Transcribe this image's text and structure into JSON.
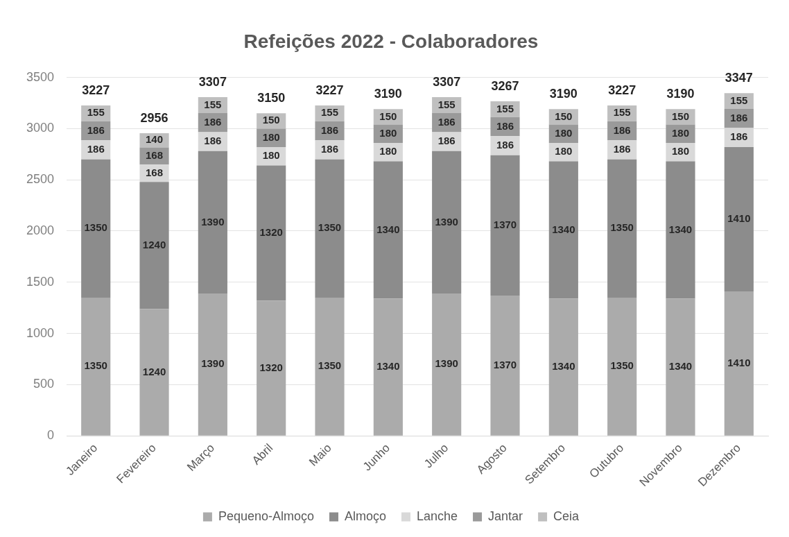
{
  "chart_data": {
    "type": "bar",
    "title": "Refeições 2022 - Colaboradores",
    "categories": [
      "Janeiro",
      "Fevereiro",
      "Março",
      "Abril",
      "Maio",
      "Junho",
      "Julho",
      "Agosto",
      "Setembro",
      "Outubro",
      "Novembro",
      "Dezembro"
    ],
    "series": [
      {
        "name": "Pequeno-Almoço",
        "color": "#ababab",
        "values": [
          1350,
          1240,
          1390,
          1320,
          1350,
          1340,
          1390,
          1370,
          1340,
          1350,
          1340,
          1410
        ]
      },
      {
        "name": "Almoço",
        "color": "#8c8c8c",
        "values": [
          1350,
          1240,
          1390,
          1320,
          1350,
          1340,
          1390,
          1370,
          1340,
          1350,
          1340,
          1410
        ]
      },
      {
        "name": "Lanche",
        "color": "#d9d9d9",
        "values": [
          186,
          168,
          186,
          180,
          186,
          180,
          186,
          186,
          180,
          186,
          180,
          186
        ]
      },
      {
        "name": "Jantar",
        "color": "#9a9a9a",
        "values": [
          186,
          168,
          186,
          180,
          186,
          180,
          186,
          186,
          180,
          186,
          180,
          186
        ]
      },
      {
        "name": "Ceia",
        "color": "#bfbfbf",
        "values": [
          155,
          140,
          155,
          150,
          155,
          150,
          155,
          155,
          150,
          155,
          150,
          155
        ]
      }
    ],
    "stacked": true,
    "totals": [
      "3227",
      "2956",
      "3307",
      "3150",
      "3227",
      "3190",
      "3307",
      "3267",
      "3190",
      "3227",
      "3190",
      "3347"
    ],
    "data_labels": true,
    "ylim": [
      0,
      3500
    ],
    "yticks": [
      0,
      500,
      1000,
      1500,
      2000,
      2500,
      3000,
      3500
    ],
    "grid": "y",
    "legend": "bottom"
  }
}
